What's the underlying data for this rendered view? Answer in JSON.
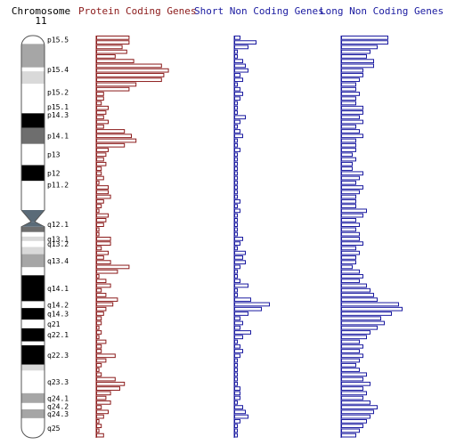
{
  "header": {
    "chromosome_label": "Chromosome",
    "chromosome_number": "11",
    "protein_label": "Protein Coding Genes",
    "short_label": "Short Non Coding Genes",
    "long_label": "Long Non Coding Genes"
  },
  "colors": {
    "protein": "#8b1a1a",
    "short": "#1a1aa0",
    "long": "#1a1aa0",
    "band_text": "#000000",
    "ideogram_outline": "#555555"
  },
  "chromosome": {
    "bands": [
      {
        "name": "p15.5",
        "start": 0.0,
        "end": 2.8,
        "stain": "gneg"
      },
      {
        "name": "",
        "start": 2.8,
        "end": 10.7,
        "stain": "gpos50"
      },
      {
        "name": "p15.4",
        "start": 10.7,
        "end": 12.0,
        "stain": "gneg"
      },
      {
        "name": "",
        "start": 12.0,
        "end": 16.2,
        "stain": "gpos25"
      },
      {
        "name": "p15.2",
        "start": 16.2,
        "end": 21.7,
        "stain": "gneg"
      },
      {
        "name": "p15.1",
        "start": 21.7,
        "end": 26.1,
        "stain": "gneg"
      },
      {
        "name": "p14.3",
        "start": 26.1,
        "end": 27.2,
        "stain": "gpos100"
      },
      {
        "name": "",
        "start": 27.2,
        "end": 31.0,
        "stain": "gpos100"
      },
      {
        "name": "p14.1",
        "start": 31.0,
        "end": 36.4,
        "stain": "gpos75"
      },
      {
        "name": "p13",
        "start": 36.4,
        "end": 43.5,
        "stain": "gneg"
      },
      {
        "name": "p12",
        "start": 43.5,
        "end": 48.8,
        "stain": "gpos100"
      },
      {
        "name": "p11.2",
        "start": 48.8,
        "end": 51.4,
        "stain": "gneg"
      },
      {
        "name": "",
        "start": 51.4,
        "end": 55.0,
        "stain": "gneg"
      },
      {
        "name": "",
        "start": 55.0,
        "end": 58.6,
        "stain": "gpos75"
      },
      {
        "name": "",
        "start": 58.6,
        "end": 62.5,
        "stain": "acen"
      },
      {
        "name": "q12.1",
        "start": 62.5,
        "end": 64.2,
        "stain": "acen"
      },
      {
        "name": "",
        "start": 64.2,
        "end": 66.0,
        "stain": "gpos75"
      },
      {
        "name": "",
        "start": 66.0,
        "end": 67.5,
        "stain": "gneg"
      },
      {
        "name": "q13.1",
        "start": 67.5,
        "end": 69.0,
        "stain": "gpos25"
      },
      {
        "name": "q13.2",
        "start": 69.0,
        "end": 71.0,
        "stain": "gneg"
      },
      {
        "name": "",
        "start": 71.0,
        "end": 73.4,
        "stain": "gpos25"
      },
      {
        "name": "q13.4",
        "start": 73.4,
        "end": 77.8,
        "stain": "gpos50"
      },
      {
        "name": "",
        "start": 77.8,
        "end": 80.5,
        "stain": "gneg"
      },
      {
        "name": "q14.1",
        "start": 80.5,
        "end": 89.2,
        "stain": "gpos100"
      },
      {
        "name": "q14.2",
        "start": 89.2,
        "end": 91.5,
        "stain": "gneg"
      },
      {
        "name": "q14.3",
        "start": 91.5,
        "end": 95.4,
        "stain": "gpos100"
      },
      {
        "name": "q21",
        "start": 95.4,
        "end": 98.3,
        "stain": "gneg"
      },
      {
        "name": "q22.1",
        "start": 98.3,
        "end": 102.7,
        "stain": "gpos100"
      },
      {
        "name": "",
        "start": 102.7,
        "end": 104.0,
        "stain": "gneg"
      },
      {
        "name": "q22.3",
        "start": 104.0,
        "end": 110.5,
        "stain": "gpos100"
      },
      {
        "name": "",
        "start": 110.5,
        "end": 112.5,
        "stain": "gpos25"
      },
      {
        "name": "q23.3",
        "start": 112.5,
        "end": 120.1,
        "stain": "gneg"
      },
      {
        "name": "q24.1",
        "start": 120.1,
        "end": 123.4,
        "stain": "gpos50"
      },
      {
        "name": "q24.2",
        "start": 123.4,
        "end": 125.5,
        "stain": "gneg"
      },
      {
        "name": "q24.3",
        "start": 125.5,
        "end": 128.5,
        "stain": "gpos50"
      },
      {
        "name": "q25",
        "start": 128.5,
        "end": 135.1,
        "stain": "gneg"
      }
    ]
  },
  "chart_data": {
    "type": "bar",
    "orientation": "horizontal",
    "bins": 86,
    "series": [
      {
        "name": "Protein Coding Genes",
        "key": "protein",
        "values": [
          14,
          14,
          11,
          13,
          8,
          16,
          28,
          31,
          29,
          28,
          17,
          14,
          3,
          3,
          2,
          5,
          4,
          3,
          5,
          3,
          12,
          15,
          17,
          12,
          5,
          4,
          3,
          4,
          2,
          2,
          3,
          1,
          5,
          5,
          6,
          3,
          2,
          1,
          5,
          4,
          3,
          1,
          1,
          6,
          6,
          2,
          5,
          3,
          6,
          14,
          9,
          1,
          4,
          6,
          2,
          4,
          9,
          7,
          4,
          3,
          2,
          2,
          1,
          2,
          1,
          4,
          2,
          2,
          8,
          4,
          2,
          1,
          2,
          8,
          12,
          10,
          6,
          4,
          6,
          2,
          5,
          3,
          1,
          2,
          1,
          3
        ]
      },
      {
        "name": "Short Non Coding Genes",
        "key": "short",
        "values": [
          2,
          8,
          5,
          1,
          1,
          3,
          4,
          5,
          2,
          3,
          1,
          2,
          3,
          2,
          1,
          1,
          1,
          4,
          2,
          1,
          2,
          3,
          1,
          1,
          2,
          1,
          1,
          1,
          1,
          1,
          1,
          1,
          1,
          1,
          1,
          2,
          1,
          2,
          1,
          1,
          1,
          1,
          1,
          3,
          2,
          1,
          4,
          3,
          4,
          2,
          1,
          1,
          2,
          5,
          1,
          1,
          6,
          13,
          10,
          5,
          2,
          3,
          2,
          6,
          3,
          1,
          2,
          3,
          2,
          1,
          1,
          1,
          1,
          1,
          1,
          2,
          2,
          2,
          1,
          3,
          4,
          5,
          2,
          1,
          1,
          1
        ]
      },
      {
        "name": "Long Non Coding Genes",
        "key": "long",
        "values": [
          13,
          13,
          10,
          8,
          7,
          9,
          9,
          6,
          6,
          5,
          4,
          4,
          5,
          4,
          4,
          6,
          6,
          5,
          6,
          4,
          5,
          6,
          4,
          4,
          4,
          3,
          4,
          3,
          3,
          6,
          5,
          4,
          6,
          5,
          4,
          4,
          4,
          7,
          6,
          4,
          5,
          4,
          5,
          5,
          6,
          4,
          5,
          4,
          4,
          3,
          5,
          6,
          5,
          7,
          8,
          9,
          10,
          16,
          17,
          14,
          11,
          12,
          10,
          8,
          7,
          5,
          6,
          5,
          6,
          5,
          4,
          5,
          7,
          6,
          8,
          6,
          7,
          6,
          8,
          10,
          9,
          8,
          7,
          6,
          5,
          4
        ]
      }
    ],
    "bands_shown": [
      "p15.5",
      "p15.4",
      "p15.2",
      "p15.1",
      "p14.3",
      "p14.1",
      "p13",
      "p12",
      "p11.2",
      "q12.1",
      "q13.1",
      "q13.2",
      "q13.4",
      "q14.1",
      "q14.2",
      "q14.3",
      "q21",
      "q22.1",
      "q22.3",
      "q23.3",
      "q24.1",
      "q24.2",
      "q24.3",
      "q25"
    ]
  }
}
